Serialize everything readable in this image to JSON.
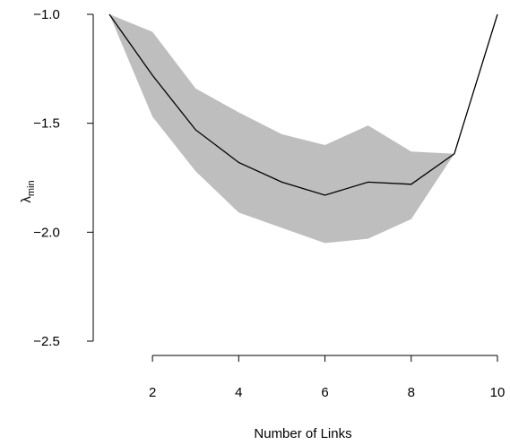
{
  "chart_data": {
    "type": "line",
    "title": "",
    "xlabel": "Number of Links",
    "ylabel": {
      "main": "λ",
      "sub": "min"
    },
    "xlim": [
      1,
      10
    ],
    "ylim": [
      -2.5,
      -1.0
    ],
    "x_ticks": [
      2,
      4,
      6,
      8,
      10
    ],
    "y_ticks": [
      -1.0,
      -1.5,
      -2.0,
      -2.5
    ],
    "x_tick_labels": [
      "2",
      "4",
      "6",
      "8",
      "10"
    ],
    "y_tick_labels": [
      "−1.0",
      "−1.5",
      "−2.0",
      "−2.5"
    ],
    "grid": false,
    "series": [
      {
        "x": [
          1,
          2,
          3,
          4,
          5,
          6,
          7,
          8,
          9,
          10
        ],
        "values": [
          -1.0,
          -1.28,
          -1.53,
          -1.68,
          -1.77,
          -1.83,
          -1.77,
          -1.78,
          -1.64,
          -1.0
        ],
        "color": "#000000"
      }
    ],
    "band": {
      "x": [
        1,
        2,
        3,
        4,
        5,
        6,
        7,
        8,
        9
      ],
      "upper": [
        -1.0,
        -1.08,
        -1.34,
        -1.45,
        -1.55,
        -1.6,
        -1.51,
        -1.63,
        -1.64
      ],
      "lower": [
        -1.0,
        -1.47,
        -1.72,
        -1.91,
        -1.98,
        -2.05,
        -2.03,
        -1.94,
        -1.64
      ],
      "color": "#bebebe"
    }
  }
}
